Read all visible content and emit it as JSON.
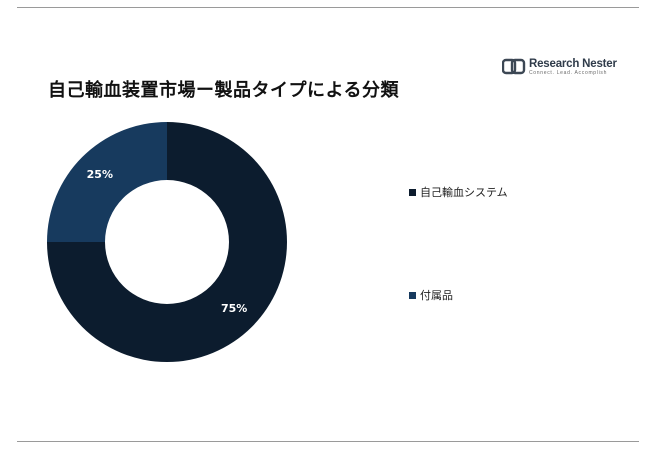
{
  "header": {
    "title": "自己輸血装置市場ー製品タイプによる分類"
  },
  "logo": {
    "name": "Research Nester",
    "tagline": "Connect. Lead. Accomplish"
  },
  "chart_data": {
    "type": "pie",
    "donut": true,
    "title": "自己輸血装置市場ー製品タイプによる分類",
    "categories": [
      "自己輸血システム",
      "付属品"
    ],
    "values": [
      75,
      25
    ],
    "labels": [
      "75%",
      "25%"
    ],
    "colors": [
      "#0c1c2e",
      "#173a5e"
    ],
    "legend_position": "right"
  }
}
